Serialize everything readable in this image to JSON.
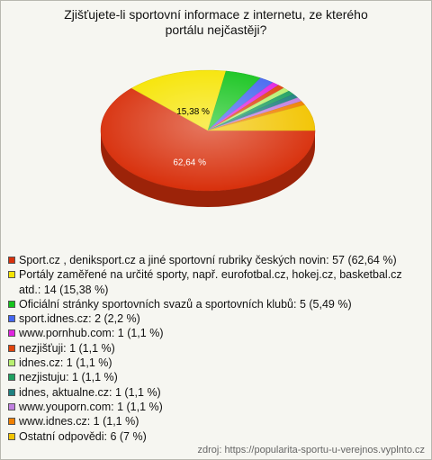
{
  "chart_data": {
    "type": "pie",
    "title": "Zjišťujete-li sportovní informace z internetu, ze kterého portálu nejčastěji?",
    "categories": [
      "Sport.cz , deniksport.cz a jiné sportovní rubriky českých novin: 57 (62,64 %)",
      "Portály zaměřené na určité sporty, např. eurofotbal.cz, hokej.cz, basketbal.cz atd.: 14 (15,38 %)",
      "Oficiální stránky sportovních svazů a sportovních klubů: 5 (5,49 %)",
      "sport.idnes.cz: 2 (2,2 %)",
      "www.pornhub.com: 1 (1,1 %)",
      "nezjišťuji: 1 (1,1 %)",
      "idnes.cz: 1 (1,1 %)",
      "nezjistuju: 1 (1,1 %)",
      "idnes, aktualne.cz: 1 (1,1 %)",
      "www.youporn.com: 1 (1,1 %)",
      "www.idnes.cz: 1 (1,1 %)",
      "Ostatní odpovědi: 6 (7 %)"
    ],
    "values": [
      62.64,
      15.38,
      5.49,
      2.2,
      1.1,
      1.1,
      1.1,
      1.1,
      1.1,
      1.1,
      1.1,
      7
    ],
    "value_labels": [
      "62,64 %",
      "15,38 %",
      null,
      null,
      null,
      null,
      null,
      null,
      null,
      null,
      null,
      null
    ],
    "colors": [
      "#d8300c",
      "#f6e400",
      "#14c41c",
      "#4466f0",
      "#e024e0",
      "#e0440c",
      "#b8f070",
      "#1ea060",
      "#1e8080",
      "#c080e0",
      "#f08000",
      "#f2c400"
    ],
    "source": "zdroj: https://popularita-sportu-u-verejnos.vyplnto.cz"
  }
}
